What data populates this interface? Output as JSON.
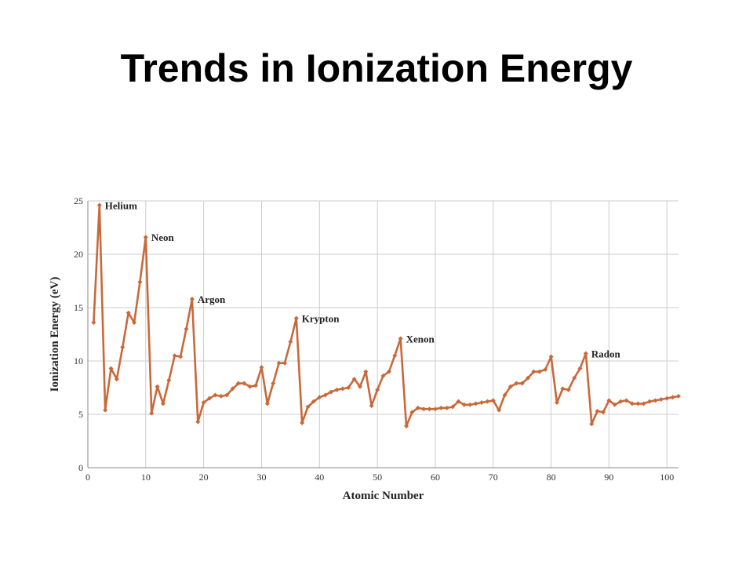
{
  "slide": {
    "title": "Trends in Ionization Energy"
  },
  "chart_data": {
    "type": "line",
    "title": "",
    "xlabel": "Atomic Number",
    "ylabel": "Ionization Energy (eV)",
    "xlim": [
      0,
      102
    ],
    "ylim": [
      0,
      25
    ],
    "x_ticks": [
      0,
      10,
      20,
      30,
      40,
      50,
      60,
      70,
      80,
      90,
      100
    ],
    "y_ticks": [
      0,
      5,
      10,
      15,
      20,
      25
    ],
    "grid": true,
    "line_color": "#c8693a",
    "series": [
      {
        "x": [
          1,
          2,
          3,
          4,
          5,
          6,
          7,
          8,
          9,
          10,
          11,
          12,
          13,
          14,
          15,
          16,
          17,
          18,
          19,
          20,
          21,
          22,
          23,
          24,
          25,
          26,
          27,
          28,
          29,
          30,
          31,
          32,
          33,
          34,
          35,
          36,
          37,
          38,
          39,
          40,
          41,
          42,
          43,
          44,
          45,
          46,
          47,
          48,
          49,
          50,
          51,
          52,
          53,
          54,
          55,
          56,
          57,
          58,
          59,
          60,
          61,
          62,
          63,
          64,
          65,
          66,
          67,
          68,
          69,
          70,
          71,
          72,
          73,
          74,
          75,
          76,
          77,
          78,
          79,
          80,
          81,
          82,
          83,
          84,
          85,
          86,
          87,
          88,
          89,
          90,
          91,
          92,
          93,
          94,
          95,
          96,
          97,
          98,
          99,
          100,
          101,
          102
        ],
        "values": [
          13.6,
          24.6,
          5.4,
          9.3,
          8.3,
          11.3,
          14.5,
          13.6,
          17.4,
          21.6,
          5.1,
          7.6,
          6.0,
          8.2,
          10.5,
          10.4,
          13.0,
          15.8,
          4.3,
          6.1,
          6.5,
          6.8,
          6.7,
          6.8,
          7.4,
          7.9,
          7.9,
          7.6,
          7.7,
          9.4,
          6.0,
          7.9,
          9.8,
          9.8,
          11.8,
          14.0,
          4.2,
          5.7,
          6.2,
          6.6,
          6.8,
          7.1,
          7.3,
          7.4,
          7.5,
          8.3,
          7.6,
          9.0,
          5.8,
          7.3,
          8.6,
          9.0,
          10.5,
          12.1,
          3.9,
          5.2,
          5.6,
          5.5,
          5.5,
          5.5,
          5.6,
          5.6,
          5.7,
          6.2,
          5.9,
          5.9,
          6.0,
          6.1,
          6.2,
          6.3,
          5.4,
          6.8,
          7.6,
          7.9,
          7.9,
          8.4,
          9.0,
          9.0,
          9.2,
          10.4,
          6.1,
          7.4,
          7.3,
          8.4,
          9.3,
          10.7,
          4.1,
          5.3,
          5.2,
          6.3,
          5.9,
          6.2,
          6.3,
          6.0,
          6.0,
          6.0,
          6.2,
          6.3,
          6.4,
          6.5,
          6.6,
          6.7
        ]
      }
    ],
    "annotations": [
      {
        "label": "Helium",
        "x": 2,
        "y": 24.6
      },
      {
        "label": "Neon",
        "x": 10,
        "y": 21.6
      },
      {
        "label": "Argon",
        "x": 18,
        "y": 15.8
      },
      {
        "label": "Krypton",
        "x": 36,
        "y": 14.0
      },
      {
        "label": "Xenon",
        "x": 54,
        "y": 12.1
      },
      {
        "label": "Radon",
        "x": 86,
        "y": 10.7
      }
    ]
  }
}
